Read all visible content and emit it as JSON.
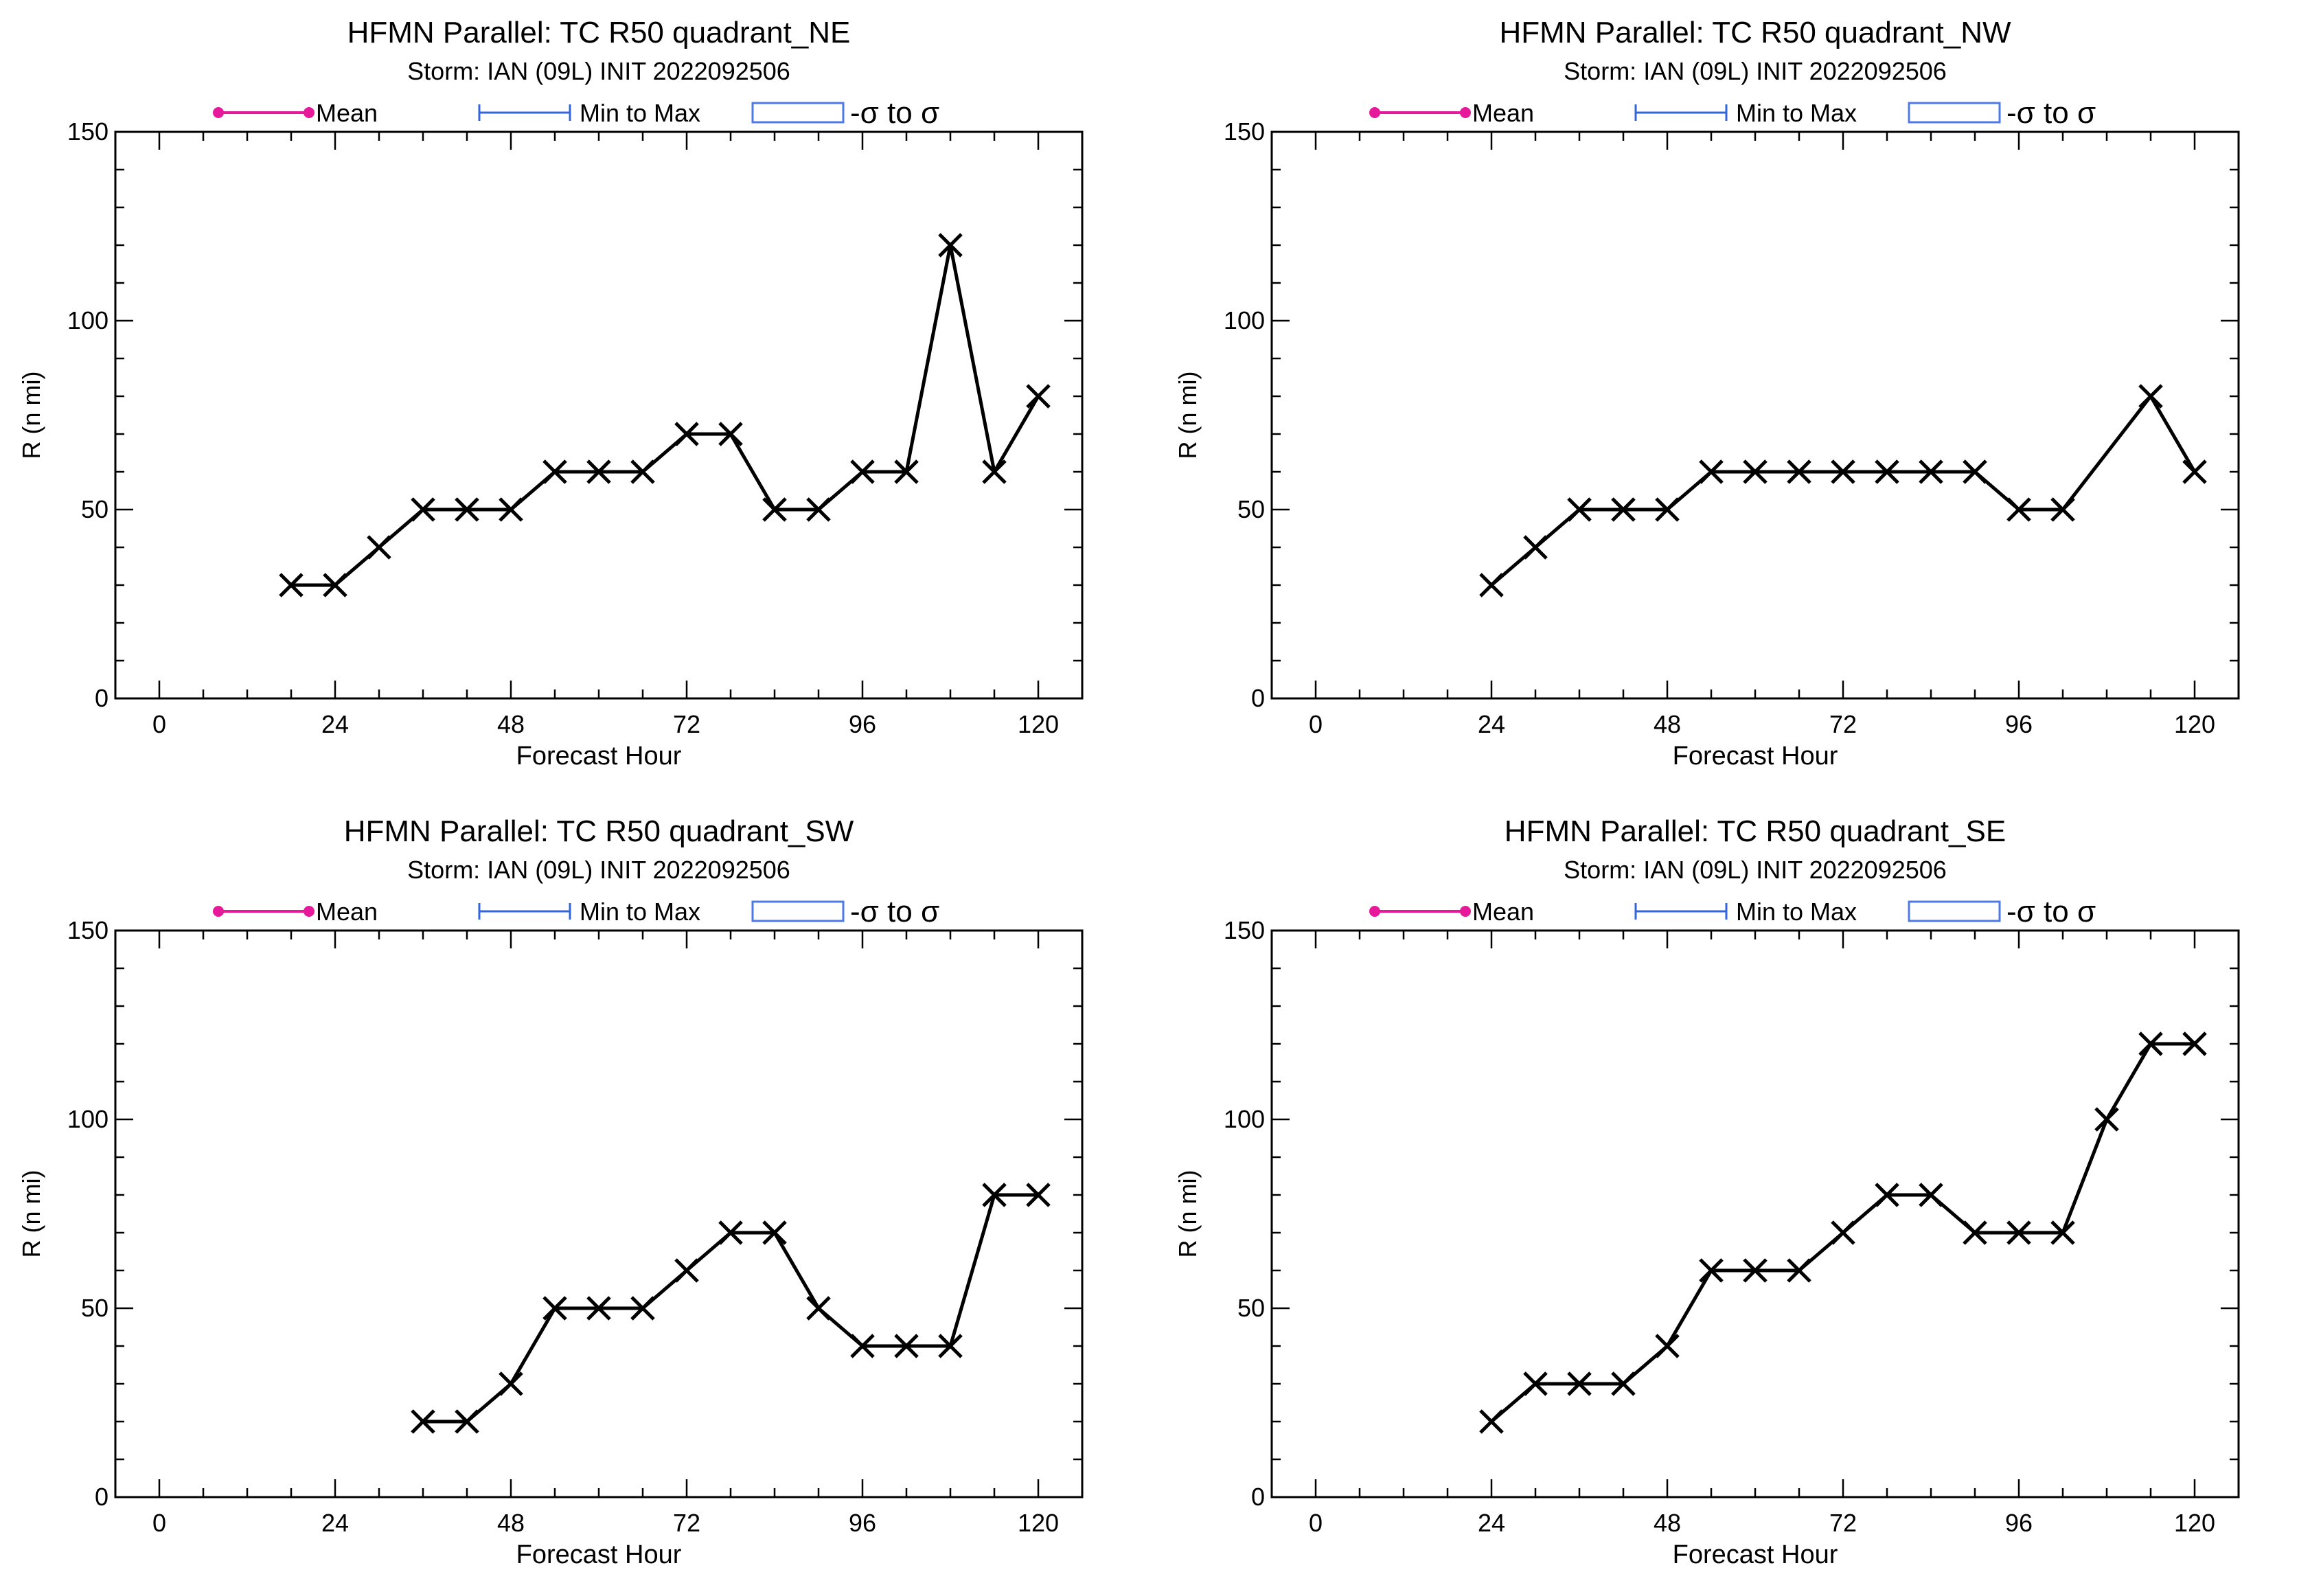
{
  "chart_data": [
    {
      "type": "line",
      "title": "HFMN Parallel: TC  R50 quadrant_NE",
      "subtitle": "Storm: IAN (09L) INIT 2022092506",
      "xlabel": "Forecast Hour",
      "ylabel": "R (n mi)",
      "xlim": [
        -6,
        126
      ],
      "ylim": [
        0,
        150
      ],
      "x_ticks": [
        0,
        24,
        48,
        72,
        96,
        120
      ],
      "y_ticks": [
        0,
        50,
        100,
        150
      ],
      "grid": false,
      "legend": [
        {
          "label": "Mean",
          "style": "line-dots",
          "color": "#e6199b"
        },
        {
          "label": "Min to Max",
          "style": "error-bar",
          "color": "#3366dd"
        },
        {
          "label": "-σ to σ",
          "style": "box",
          "color": "#4d7ae6"
        }
      ],
      "series": [
        {
          "color": "#000000",
          "marker": "x",
          "x": [
            18,
            24,
            30,
            36,
            42,
            48,
            54,
            60,
            66,
            72,
            78,
            84,
            90,
            96,
            102,
            108,
            114,
            120
          ],
          "y": [
            30,
            30,
            40,
            50,
            50,
            50,
            60,
            60,
            60,
            70,
            70,
            50,
            50,
            60,
            60,
            120,
            60,
            80
          ]
        }
      ]
    },
    {
      "type": "line",
      "title": "HFMN Parallel: TC  R50 quadrant_NW",
      "subtitle": "Storm: IAN (09L) INIT 2022092506",
      "xlabel": "Forecast Hour",
      "ylabel": "R (n mi)",
      "xlim": [
        -6,
        126
      ],
      "ylim": [
        0,
        150
      ],
      "x_ticks": [
        0,
        24,
        48,
        72,
        96,
        120
      ],
      "y_ticks": [
        0,
        50,
        100,
        150
      ],
      "grid": false,
      "legend": [
        {
          "label": "Mean",
          "style": "line-dots",
          "color": "#e6199b"
        },
        {
          "label": "Min to Max",
          "style": "error-bar",
          "color": "#3366dd"
        },
        {
          "label": "-σ to σ",
          "style": "box",
          "color": "#4d7ae6"
        }
      ],
      "series": [
        {
          "color": "#000000",
          "marker": "x",
          "x": [
            24,
            30,
            36,
            42,
            48,
            54,
            60,
            66,
            72,
            78,
            84,
            90,
            96,
            102,
            114,
            120
          ],
          "y": [
            30,
            40,
            50,
            50,
            50,
            60,
            60,
            60,
            60,
            60,
            60,
            60,
            50,
            50,
            80,
            60
          ]
        }
      ]
    },
    {
      "type": "line",
      "title": "HFMN Parallel: TC  R50 quadrant_SW",
      "subtitle": "Storm: IAN (09L) INIT 2022092506",
      "xlabel": "Forecast Hour",
      "ylabel": "R (n mi)",
      "xlim": [
        -6,
        126
      ],
      "ylim": [
        0,
        150
      ],
      "x_ticks": [
        0,
        24,
        48,
        72,
        96,
        120
      ],
      "y_ticks": [
        0,
        50,
        100,
        150
      ],
      "grid": false,
      "legend": [
        {
          "label": "Mean",
          "style": "line-dots",
          "color": "#e6199b"
        },
        {
          "label": "Min to Max",
          "style": "error-bar",
          "color": "#3366dd"
        },
        {
          "label": "-σ to σ",
          "style": "box",
          "color": "#4d7ae6"
        }
      ],
      "series": [
        {
          "color": "#000000",
          "marker": "x",
          "x": [
            36,
            42,
            48,
            54,
            60,
            66,
            72,
            78,
            84,
            90,
            96,
            102,
            108,
            114,
            120
          ],
          "y": [
            20,
            20,
            30,
            50,
            50,
            50,
            60,
            70,
            70,
            50,
            40,
            40,
            40,
            80,
            80
          ]
        }
      ]
    },
    {
      "type": "line",
      "title": "HFMN Parallel: TC  R50 quadrant_SE",
      "subtitle": "Storm: IAN (09L) INIT 2022092506",
      "xlabel": "Forecast Hour",
      "ylabel": "R (n mi)",
      "xlim": [
        -6,
        126
      ],
      "ylim": [
        0,
        150
      ],
      "x_ticks": [
        0,
        24,
        48,
        72,
        96,
        120
      ],
      "y_ticks": [
        0,
        50,
        100,
        150
      ],
      "grid": false,
      "legend": [
        {
          "label": "Mean",
          "style": "line-dots",
          "color": "#e6199b"
        },
        {
          "label": "Min to Max",
          "style": "error-bar",
          "color": "#3366dd"
        },
        {
          "label": "-σ to σ",
          "style": "box",
          "color": "#4d7ae6"
        }
      ],
      "series": [
        {
          "color": "#000000",
          "marker": "x",
          "x": [
            24,
            30,
            36,
            42,
            48,
            54,
            60,
            66,
            72,
            78,
            84,
            90,
            96,
            102,
            108,
            114,
            120
          ],
          "y": [
            20,
            30,
            30,
            30,
            40,
            60,
            60,
            60,
            70,
            80,
            80,
            70,
            70,
            70,
            100,
            120,
            120
          ]
        }
      ]
    }
  ]
}
